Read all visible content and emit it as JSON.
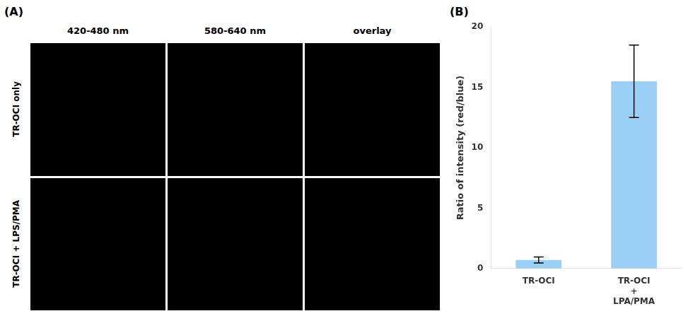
{
  "chart_data": {
    "type": "bar",
    "categories": [
      "TR-OCI",
      "TR-OCI\n+\nLPA/PMA"
    ],
    "values": [
      0.7,
      15.5
    ],
    "errors": [
      0.25,
      3.0
    ],
    "ylabel": "Ratio of intensity (red/blue)",
    "ylim": [
      0,
      20
    ],
    "yticks": [
      0,
      5,
      10,
      15,
      20
    ],
    "grid": false,
    "annotations": [
      "(A)",
      "(B)",
      "420-480 nm",
      "580-640 nm",
      "overlay",
      "TR-OCI only",
      "TR-OCI + LPS/PMA"
    ]
  }
}
